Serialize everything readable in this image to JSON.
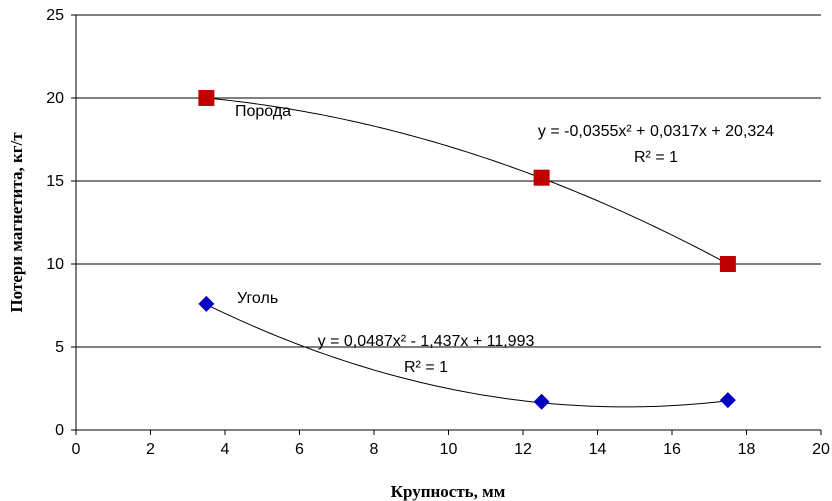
{
  "chart_data": {
    "type": "scatter",
    "xlabel": "Крупность, мм",
    "ylabel": "Потери магнетита, кг/т",
    "xlim": [
      0,
      20
    ],
    "ylim": [
      0,
      25
    ],
    "xticks": [
      0,
      2,
      4,
      6,
      8,
      10,
      12,
      14,
      16,
      18,
      20
    ],
    "yticks": [
      0,
      5,
      10,
      15,
      20,
      25
    ],
    "grid": "horizontal",
    "series": [
      {
        "name": "Порода",
        "marker": "square",
        "color": "#c00000",
        "x": [
          3.5,
          12.5,
          17.5
        ],
        "y": [
          20,
          15.2,
          10
        ],
        "trendline": {
          "type": "polynomial",
          "coefficients": [
            -0.0355,
            0.0317,
            20.324
          ],
          "equation": "y = -0,0355x² + 0,0317x + 20,324",
          "r2": "R² = 1"
        }
      },
      {
        "name": "Уголь",
        "marker": "diamond",
        "color": "#0000c0",
        "x": [
          3.5,
          12.5,
          17.5
        ],
        "y": [
          7.6,
          1.7,
          1.8
        ],
        "trendline": {
          "type": "polynomial",
          "coefficients": [
            0.0487,
            -1.437,
            11.993
          ],
          "equation": "y = 0,0487x² - 1,437x + 11,993",
          "r2": "R² = 1"
        }
      }
    ]
  }
}
